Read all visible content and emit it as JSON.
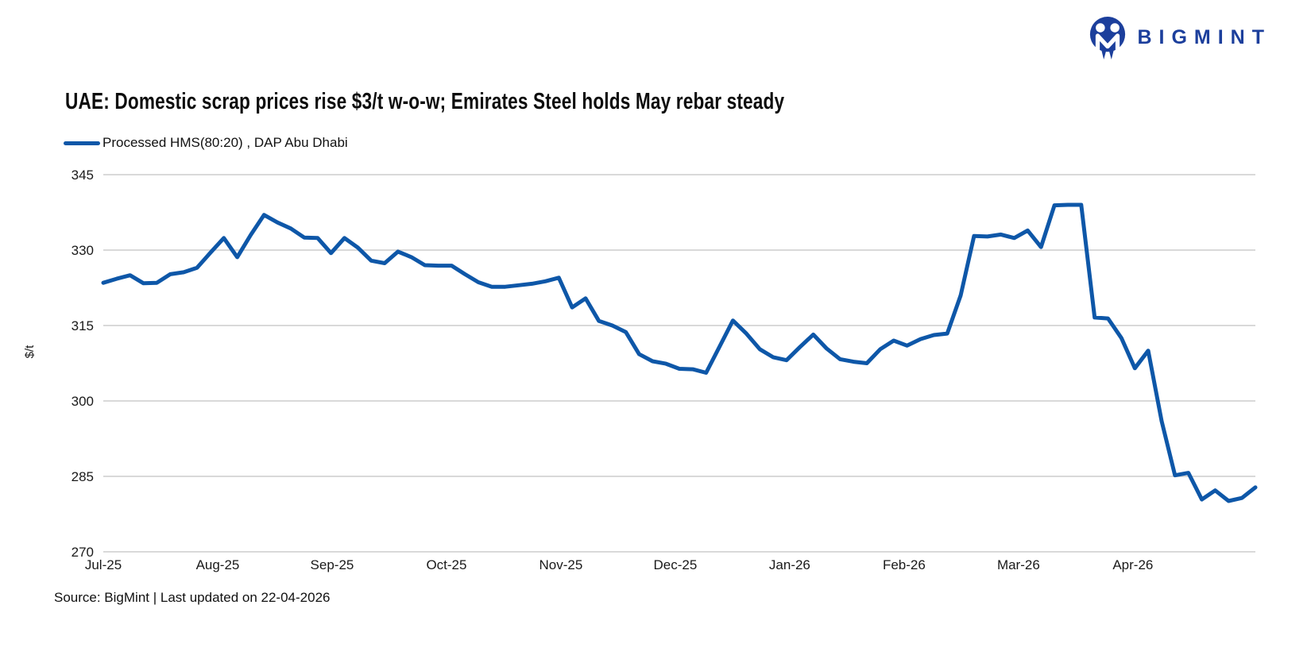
{
  "logo": {
    "text": "BIGMINT",
    "color": "#1c3f9c"
  },
  "chart": {
    "title": "UAE: Domestic scrap prices rise $3/t w-o-w; Emirates Steel holds May rebar steady",
    "legend_label": "Processed HMS(80:20) , DAP Abu Dhabi",
    "line_color": "#0e57a8"
  },
  "footer": {
    "source_text": "Source: BigMint | Last updated on 22-04-2026"
  },
  "chart_data": {
    "type": "line",
    "title": "UAE: Domestic scrap prices rise $3/t w-o-w; Emirates Steel holds May rebar steady",
    "ylabel": "$/t",
    "ylim": [
      270,
      345
    ],
    "y_ticks": [
      270,
      285,
      300,
      315,
      330,
      345
    ],
    "x_tick_labels": [
      "Jul-25",
      "Aug-25",
      "Sep-25",
      "Oct-25",
      "Nov-25",
      "Dec-25",
      "Jan-26",
      "Feb-26",
      "Mar-26",
      "Apr-26"
    ],
    "grid": "horizontal-only",
    "gridline_color": "#d9d9d9",
    "legend_position": "top-left",
    "x_axis_note": "evenly spaced price assessments (approx. twice weekly) from Jul-2025 to late Apr-2026; values in $/t estimated from gridlines",
    "series": [
      {
        "name": "Processed HMS(80:20) , DAP Abu Dhabi",
        "color": "#0e57a8",
        "values": [
          323.5,
          324.3,
          325,
          323.4,
          323.5,
          325.2,
          325.6,
          326.5,
          329.5,
          332.4,
          328.6,
          333,
          337,
          335.5,
          334.3,
          332.5,
          332.4,
          329.4,
          332.4,
          330.5,
          327.9,
          327.4,
          329.7,
          328.6,
          327,
          326.9,
          326.9,
          325.2,
          323.6,
          322.7,
          322.7,
          323,
          323.3,
          323.8,
          324.5,
          318.6,
          320.4,
          315.9,
          315,
          313.7,
          309.3,
          307.9,
          307.4,
          306.4,
          306.3,
          305.6,
          310.8,
          316,
          313.4,
          310.3,
          308.7,
          308.1,
          310.7,
          313.2,
          310.4,
          308.3,
          307.8,
          307.5,
          310.3,
          312,
          311,
          312.3,
          313.1,
          313.4,
          321,
          332.8,
          332.7,
          333.1,
          332.4,
          333.9,
          330.6,
          338.9,
          339,
          339,
          316.6,
          316.4,
          312.5,
          306.5,
          310,
          296,
          285.2,
          285.7,
          280.4,
          282.2,
          280.1,
          280.7,
          282.8
        ]
      }
    ]
  }
}
